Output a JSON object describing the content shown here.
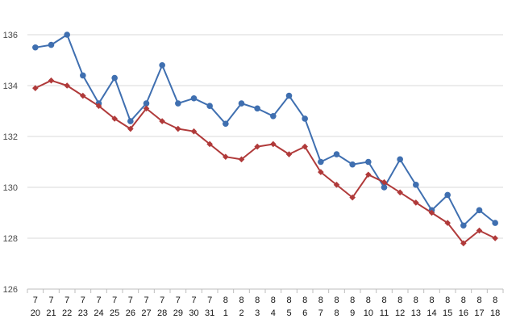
{
  "chart_data": {
    "type": "line",
    "x_months": [
      "7",
      "7",
      "7",
      "7",
      "7",
      "7",
      "7",
      "7",
      "7",
      "7",
      "7",
      "7",
      "8",
      "8",
      "8",
      "8",
      "8",
      "8",
      "8",
      "8",
      "8",
      "8",
      "8",
      "8",
      "8",
      "8",
      "8",
      "8",
      "8",
      "8"
    ],
    "x_days": [
      "20",
      "21",
      "22",
      "23",
      "24",
      "25",
      "26",
      "27",
      "28",
      "29",
      "30",
      "31",
      "1",
      "2",
      "3",
      "4",
      "5",
      "6",
      "7",
      "8",
      "9",
      "10",
      "11",
      "12",
      "13",
      "14",
      "15",
      "16",
      "17",
      "18"
    ],
    "ylim": [
      126,
      136
    ],
    "yticks": [
      "126",
      "128",
      "130",
      "132",
      "134",
      "136"
    ],
    "grid": true,
    "legend": "none",
    "series": [
      {
        "color": "#3f6fb0",
        "marker": "circle",
        "values": [
          135.5,
          135.6,
          136.0,
          134.4,
          133.3,
          134.3,
          132.6,
          133.3,
          134.8,
          133.3,
          133.5,
          133.2,
          132.5,
          133.3,
          133.1,
          132.8,
          133.6,
          132.7,
          131.0,
          131.3,
          130.9,
          131.0,
          130.0,
          131.1,
          130.1,
          129.1,
          129.7,
          128.5,
          129.1,
          128.6
        ]
      },
      {
        "color": "#b03a3a",
        "marker": "diamond",
        "values": [
          133.9,
          134.2,
          134.0,
          133.6,
          133.2,
          132.7,
          132.3,
          133.1,
          132.6,
          132.3,
          132.2,
          131.7,
          131.2,
          131.1,
          131.6,
          131.7,
          131.3,
          131.6,
          130.6,
          130.1,
          129.6,
          130.5,
          130.2,
          129.8,
          129.4,
          129.0,
          128.6,
          127.8,
          128.3,
          128.0
        ]
      }
    ]
  }
}
